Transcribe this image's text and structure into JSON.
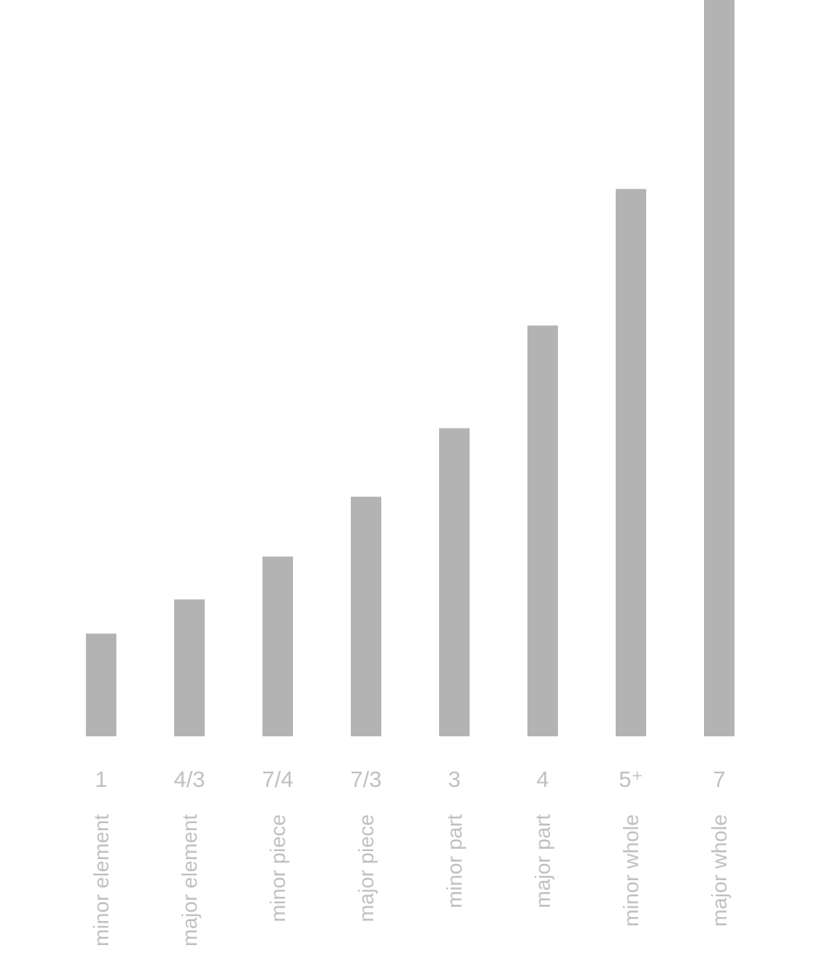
{
  "chart_data": {
    "type": "bar",
    "categories": [
      "minor element",
      "major element",
      "minor piece",
      "major piece",
      "minor part",
      "major part",
      "minor whole",
      "major whole"
    ],
    "value_labels": [
      "1",
      "4/3",
      "7/4",
      "7/3",
      "3",
      "4",
      "5⁺",
      "7"
    ],
    "values": [
      1,
      1.333,
      1.75,
      2.333,
      3,
      4,
      5.33,
      7.17
    ],
    "ylim": [
      0,
      7.17
    ],
    "grid": false,
    "axes_visible": false,
    "bar_color": "#b3b3b3",
    "label_color": "#c0c0c0"
  }
}
